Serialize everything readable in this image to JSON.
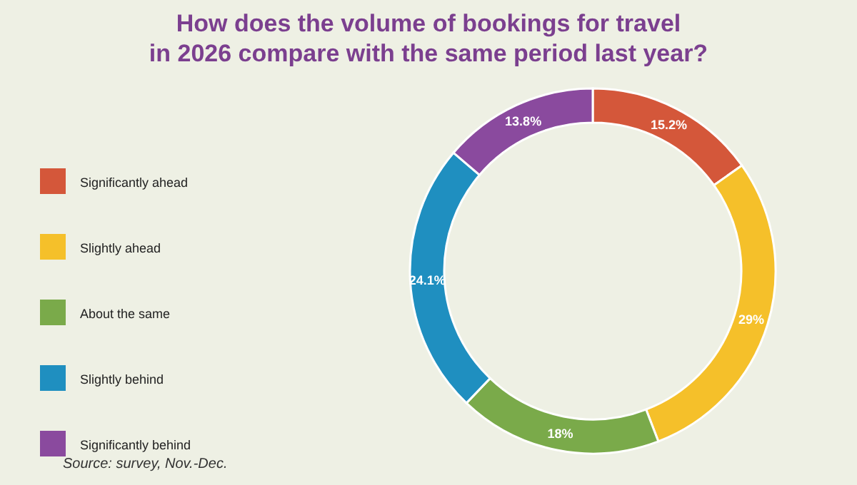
{
  "chart_data": {
    "type": "donut",
    "title": "How does the volume of bookings for travel\nin 2026 compare with the same period last year?",
    "categories": [
      "Significantly ahead",
      "Slightly ahead",
      "About the same",
      "Slightly behind",
      "Significantly behind"
    ],
    "values": [
      15.2,
      29,
      18,
      24.1,
      13.8
    ],
    "value_labels": [
      "15.2%",
      "29%",
      "18%",
      "24.1%",
      "13.8%"
    ],
    "colors": [
      "#d4573a",
      "#f5c02a",
      "#7aaa4a",
      "#1f8fc0",
      "#8a4a9e"
    ],
    "legend": "left",
    "annotations": [
      "Source: survey, Nov.-Dec."
    ]
  }
}
